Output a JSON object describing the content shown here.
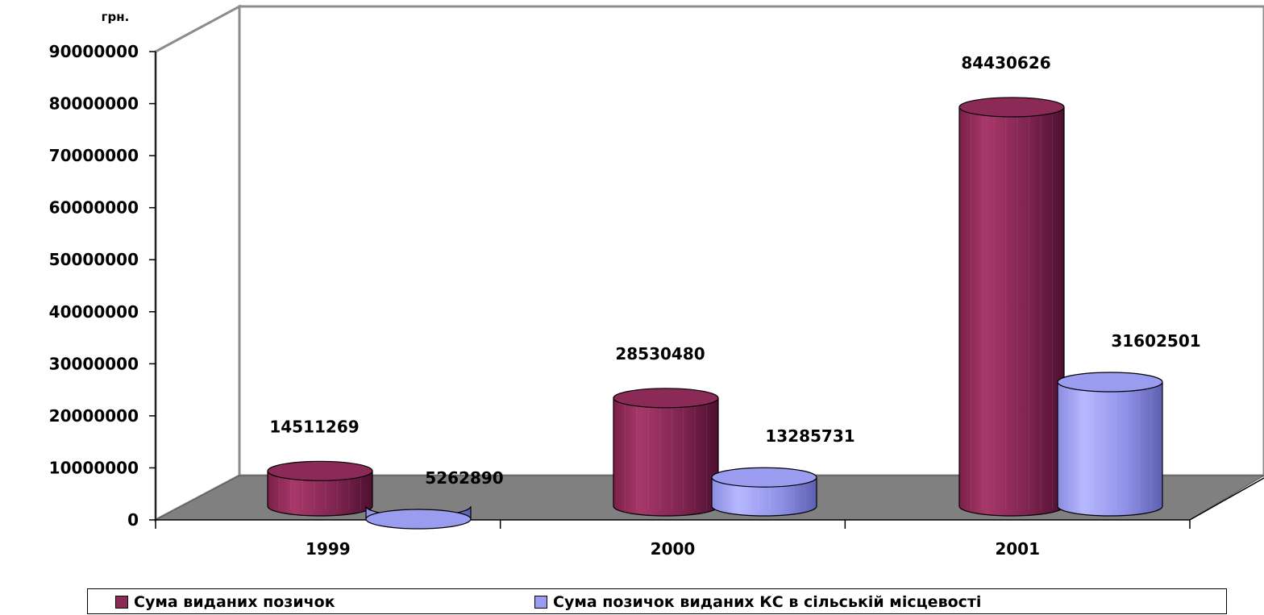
{
  "chart_data": {
    "type": "bar",
    "style": "3d-cylinder",
    "ylabel": "грн.",
    "ylim": [
      0,
      90000000
    ],
    "yticks": [
      "0",
      "10000000",
      "20000000",
      "30000000",
      "40000000",
      "50000000",
      "60000000",
      "70000000",
      "80000000",
      "90000000"
    ],
    "categories": [
      "1999",
      "2000",
      "2001"
    ],
    "series": [
      {
        "name": "Сума виданих позичок",
        "color": "#8b2a56",
        "values": [
          14511269,
          28530480,
          84430626
        ],
        "labels": [
          "14511269",
          "28530480",
          "84430626"
        ]
      },
      {
        "name": "Сума позичок виданих КС в сільській місцевості",
        "color": "#9a9cf0",
        "values": [
          5262890,
          13285731,
          31602501
        ],
        "labels": [
          "5262890",
          "13285731",
          "31602501"
        ]
      }
    ],
    "grid": false,
    "legend_position": "bottom",
    "floor_color": "#808080"
  },
  "legend": {
    "items": [
      "Сума виданих позичок",
      "Сума позичок виданих КС в сільській місцевості"
    ]
  }
}
